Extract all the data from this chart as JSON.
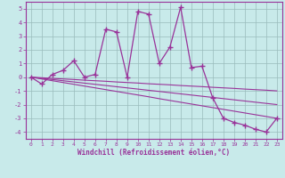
{
  "x": [
    0,
    1,
    2,
    3,
    4,
    5,
    6,
    7,
    8,
    9,
    10,
    11,
    12,
    13,
    14,
    15,
    16,
    17,
    18,
    19,
    20,
    21,
    22,
    23
  ],
  "y_main": [
    0,
    -0.5,
    0.2,
    0.5,
    1.2,
    0.0,
    0.2,
    3.5,
    3.3,
    0.0,
    4.8,
    4.6,
    1.0,
    2.2,
    5.1,
    0.7,
    0.8,
    -1.5,
    -3.0,
    -3.3,
    -3.5,
    -3.8,
    -4.0,
    -3.0
  ],
  "y_line1": [
    0.0,
    -0.04,
    -0.09,
    -0.13,
    -0.17,
    -0.22,
    -0.26,
    -0.3,
    -0.35,
    -0.39,
    -0.43,
    -0.48,
    -0.52,
    -0.56,
    -0.61,
    -0.65,
    -0.69,
    -0.74,
    -0.78,
    -0.82,
    -0.87,
    -0.91,
    -0.95,
    -1.0
  ],
  "y_line2": [
    0.0,
    -0.087,
    -0.174,
    -0.261,
    -0.348,
    -0.435,
    -0.522,
    -0.609,
    -0.696,
    -0.783,
    -0.87,
    -0.957,
    -1.043,
    -1.13,
    -1.217,
    -1.304,
    -1.391,
    -1.478,
    -1.565,
    -1.652,
    -1.739,
    -1.826,
    -1.913,
    -2.0
  ],
  "y_line3": [
    0.0,
    -0.13,
    -0.26,
    -0.39,
    -0.52,
    -0.65,
    -0.78,
    -0.91,
    -1.04,
    -1.17,
    -1.3,
    -1.43,
    -1.57,
    -1.7,
    -1.83,
    -1.96,
    -2.09,
    -2.22,
    -2.35,
    -2.48,
    -2.61,
    -2.74,
    -2.87,
    -3.0
  ],
  "color": "#993399",
  "bg_color": "#c8eaea",
  "grid_color": "#99bbbb",
  "xlabel": "Windchill (Refroidissement éolien,°C)",
  "xlim": [
    -0.5,
    23.5
  ],
  "ylim": [
    -4.5,
    5.5
  ],
  "yticks": [
    -4,
    -3,
    -2,
    -1,
    0,
    1,
    2,
    3,
    4,
    5
  ],
  "xticks": [
    0,
    1,
    2,
    3,
    4,
    5,
    6,
    7,
    8,
    9,
    10,
    11,
    12,
    13,
    14,
    15,
    16,
    17,
    18,
    19,
    20,
    21,
    22,
    23
  ]
}
